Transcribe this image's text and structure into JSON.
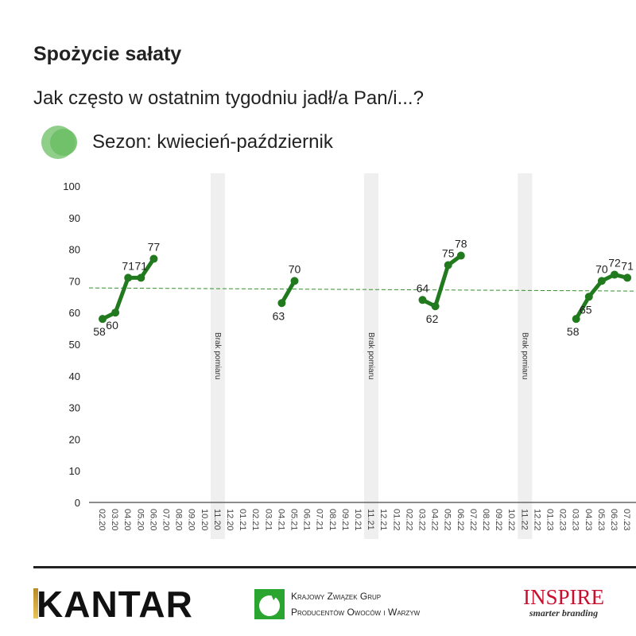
{
  "header": {
    "title": "Spożycie sałaty",
    "subtitle": "Jak często w ostatnim tygodniu jadł/a Pan/i...?",
    "legend_label": "Sezon: kwiecień-październik"
  },
  "chart_data": {
    "type": "line",
    "title": "Spożycie sałaty",
    "series_name": "Sezon: kwiecień-październik",
    "categories": [
      "02.20",
      "03.20",
      "04.20",
      "05.20",
      "06.20",
      "07.20",
      "08.20",
      "09.20",
      "10.20",
      "11.20",
      "12.20",
      "01.21",
      "02.21",
      "03.21",
      "04.21",
      "05.21",
      "06.21",
      "07.21",
      "08.21",
      "09.21",
      "10.21",
      "11.21",
      "12.21",
      "01.22",
      "02.22",
      "03.22",
      "04.22",
      "05.22",
      "06.22",
      "07.22",
      "08.22",
      "09.22",
      "10.22",
      "11.22",
      "12.22",
      "01.23",
      "02.23",
      "03.23",
      "04.23",
      "05.23",
      "06.23",
      "07.23"
    ],
    "values": [
      58,
      60,
      71,
      71,
      77,
      null,
      null,
      null,
      null,
      null,
      null,
      null,
      null,
      null,
      63,
      70,
      null,
      null,
      null,
      null,
      null,
      null,
      null,
      null,
      null,
      64,
      62,
      75,
      78,
      null,
      null,
      null,
      null,
      null,
      null,
      null,
      null,
      58,
      65,
      70,
      72,
      71
    ],
    "reference_line": {
      "style": "dashed",
      "start": 67.8,
      "end": 66.8
    },
    "no_measurement_periods": [
      "11.20",
      "11.21",
      "11.22"
    ],
    "no_measurement_label": "Brak pomiaru",
    "yticks": [
      "0",
      "10",
      "20",
      "30",
      "40",
      "50",
      "60",
      "70",
      "80",
      "90",
      "100"
    ],
    "ylim": [
      0,
      100
    ],
    "colors": {
      "line": "#217a1e",
      "ref": "#3a8a35",
      "band": "#efefef"
    }
  },
  "footer": {
    "kantar": "KANTAR",
    "kzg_line1": "Krajowy Związek Grup",
    "kzg_line2": "Producentów Owoców i Warzyw",
    "inspire_name": "INSPIRE",
    "inspire_tag": "smarter branding"
  }
}
